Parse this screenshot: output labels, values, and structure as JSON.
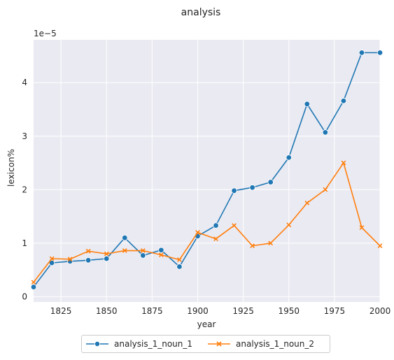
{
  "chart_data": {
    "type": "line",
    "title": "analysis",
    "xlabel": "year",
    "ylabel": "lexicon%",
    "y_offset_label": "1e−5",
    "xlim": [
      1810,
      2000
    ],
    "ylim": [
      -0.1,
      4.8
    ],
    "x_ticks": [
      1825,
      1850,
      1875,
      1900,
      1925,
      1950,
      1975,
      2000
    ],
    "y_ticks": [
      0,
      1,
      2,
      3,
      4
    ],
    "grid": true,
    "legend_position": "bottom-center",
    "x": [
      1810,
      1820,
      1830,
      1840,
      1850,
      1860,
      1870,
      1880,
      1890,
      1900,
      1910,
      1920,
      1930,
      1940,
      1950,
      1960,
      1970,
      1980,
      1990,
      2000
    ],
    "series": [
      {
        "name": "analysis_1_noun_1",
        "color": "#1f77b4",
        "marker": "circle",
        "values": [
          0.18,
          0.63,
          0.66,
          0.68,
          0.71,
          1.1,
          0.77,
          0.87,
          0.56,
          1.13,
          1.33,
          1.98,
          2.04,
          2.14,
          2.6,
          3.6,
          3.07,
          3.66,
          4.56,
          4.56
        ]
      },
      {
        "name": "analysis_1_noun_2",
        "color": "#ff7f0e",
        "marker": "x",
        "values": [
          0.27,
          0.71,
          0.7,
          0.85,
          0.8,
          0.86,
          0.86,
          0.78,
          0.69,
          1.2,
          1.08,
          1.33,
          0.95,
          1.0,
          1.34,
          1.75,
          2.0,
          2.5,
          1.29,
          0.95
        ]
      }
    ]
  }
}
